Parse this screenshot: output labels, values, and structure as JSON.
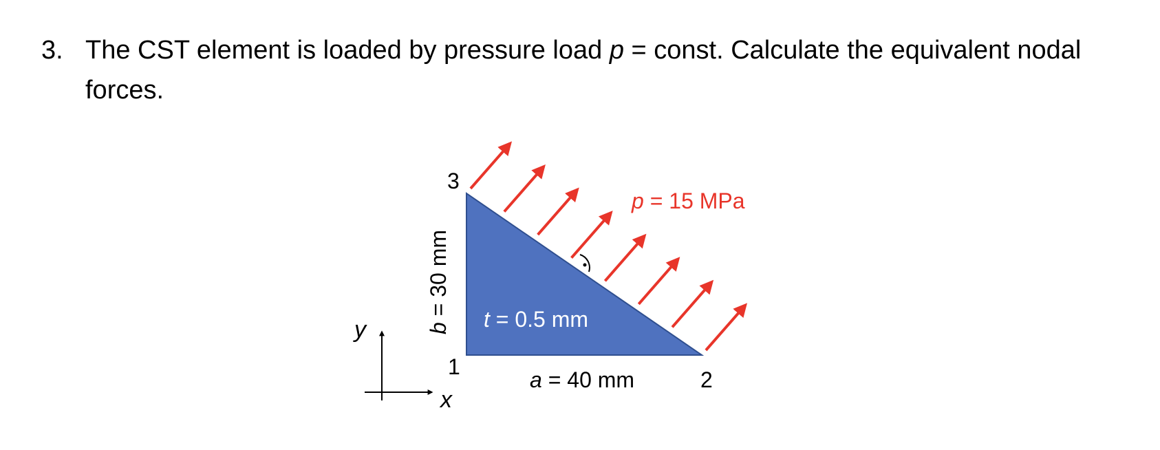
{
  "problem": {
    "number": "3.",
    "text_before": "The CST element is loaded by pressure load ",
    "var": "p",
    "text_after": " = const. Calculate the equivalent nodal forces."
  },
  "figure": {
    "node_labels": {
      "n1": "1",
      "n2": "2",
      "n3": "3"
    },
    "axis_labels": {
      "x": "x",
      "y": "y"
    },
    "labels": {
      "a": {
        "var": "a",
        "rest": " = 40 mm"
      },
      "b": {
        "var": "b",
        "rest": " = 30 mm"
      },
      "t": {
        "var": "t",
        "rest": " = 0.5 mm"
      },
      "p": {
        "var": "p",
        "rest": " = 15 MPa"
      }
    },
    "colors": {
      "element_fill": "#4f72bf",
      "element_edge": "#2f4f8f",
      "load": "#e8352a",
      "axis": "#000000"
    },
    "load_arrow_count": 8
  }
}
